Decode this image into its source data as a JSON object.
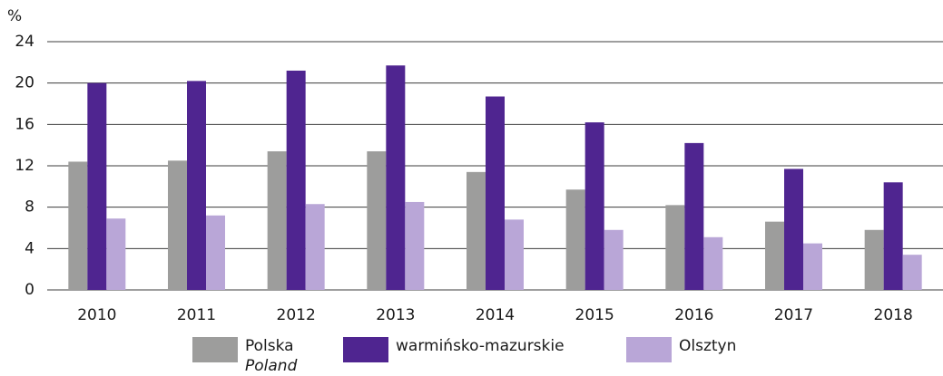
{
  "chart_data": {
    "type": "bar",
    "y_unit": "%",
    "categories": [
      "2010",
      "2011",
      "2012",
      "2013",
      "2014",
      "2015",
      "2016",
      "2017",
      "2018"
    ],
    "series": [
      {
        "name": "Polska",
        "name_en": "Poland",
        "color": "#9d9d9c",
        "values": [
          12.4,
          12.5,
          13.4,
          13.4,
          11.4,
          9.7,
          8.2,
          6.6,
          5.8
        ]
      },
      {
        "name": "warmińsko-mazurskie",
        "color": "#4f2590",
        "values": [
          20.0,
          20.2,
          21.2,
          21.7,
          18.7,
          16.2,
          14.2,
          11.7,
          10.4
        ]
      },
      {
        "name": "Olsztyn",
        "color": "#b9a6d7",
        "values": [
          6.9,
          7.2,
          8.3,
          8.5,
          6.8,
          5.8,
          5.1,
          4.5,
          3.4
        ]
      }
    ],
    "ylim": [
      0,
      24
    ],
    "yticks": [
      0,
      4,
      8,
      12,
      16,
      20,
      24
    ],
    "grid": true,
    "legend": "bottom"
  }
}
